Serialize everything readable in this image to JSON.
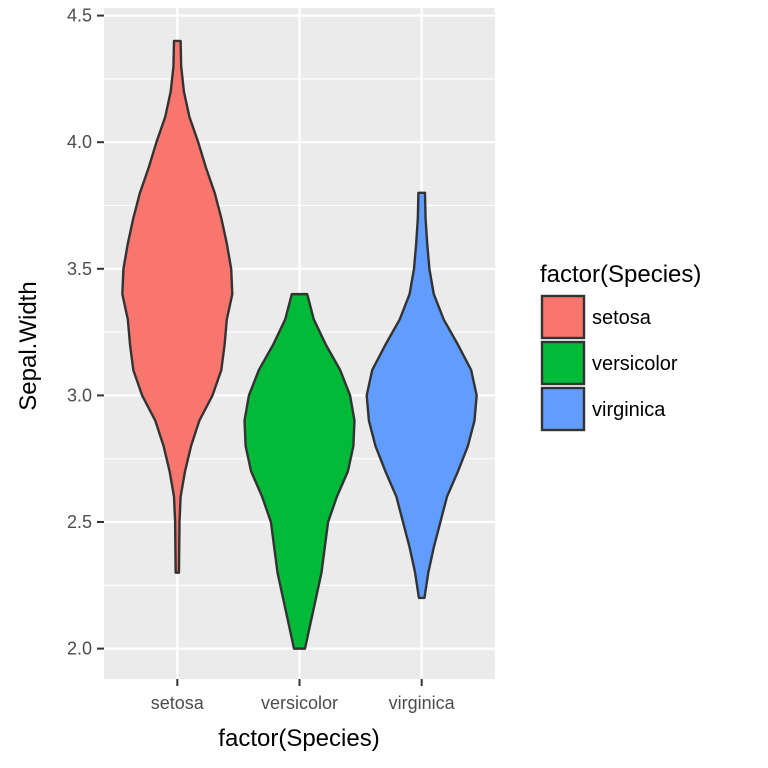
{
  "chart_data": {
    "type": "violin",
    "title": "",
    "xlabel": "factor(Species)",
    "ylabel": "Sepal.Width",
    "categories": [
      "setosa",
      "versicolor",
      "virginica"
    ],
    "ylim": [
      1.88,
      4.53
    ],
    "yticks": [
      2.0,
      2.5,
      3.0,
      3.5,
      4.0,
      4.5
    ],
    "ytick_labels": [
      "2.0",
      "2.5",
      "3.0",
      "3.5",
      "4.0",
      "4.5"
    ],
    "grid": true,
    "legend": {
      "title": "factor(Species)",
      "position": "right",
      "entries": [
        "setosa",
        "versicolor",
        "virginica"
      ]
    },
    "series": [
      {
        "category": "setosa",
        "color": "#F8766D",
        "range": [
          2.3,
          4.4
        ],
        "density_profile": [
          [
            2.3,
            0.03
          ],
          [
            2.5,
            0.04
          ],
          [
            2.6,
            0.06
          ],
          [
            2.7,
            0.14
          ],
          [
            2.8,
            0.25
          ],
          [
            2.9,
            0.4
          ],
          [
            3.0,
            0.64
          ],
          [
            3.1,
            0.8
          ],
          [
            3.2,
            0.86
          ],
          [
            3.3,
            0.9
          ],
          [
            3.4,
            1.0
          ],
          [
            3.5,
            0.98
          ],
          [
            3.6,
            0.9
          ],
          [
            3.7,
            0.8
          ],
          [
            3.8,
            0.68
          ],
          [
            3.9,
            0.52
          ],
          [
            4.0,
            0.38
          ],
          [
            4.1,
            0.22
          ],
          [
            4.2,
            0.12
          ],
          [
            4.3,
            0.07
          ],
          [
            4.4,
            0.06
          ]
        ]
      },
      {
        "category": "versicolor",
        "color": "#00BA38",
        "range": [
          2.0,
          3.4
        ],
        "density_profile": [
          [
            2.0,
            0.1
          ],
          [
            2.1,
            0.2
          ],
          [
            2.2,
            0.3
          ],
          [
            2.3,
            0.4
          ],
          [
            2.4,
            0.46
          ],
          [
            2.5,
            0.52
          ],
          [
            2.6,
            0.68
          ],
          [
            2.7,
            0.88
          ],
          [
            2.8,
            0.98
          ],
          [
            2.9,
            1.0
          ],
          [
            3.0,
            0.92
          ],
          [
            3.1,
            0.74
          ],
          [
            3.2,
            0.48
          ],
          [
            3.3,
            0.26
          ],
          [
            3.4,
            0.14
          ]
        ]
      },
      {
        "category": "virginica",
        "color": "#619CFF",
        "range": [
          2.2,
          3.8
        ],
        "density_profile": [
          [
            2.2,
            0.05
          ],
          [
            2.3,
            0.12
          ],
          [
            2.4,
            0.22
          ],
          [
            2.5,
            0.34
          ],
          [
            2.6,
            0.46
          ],
          [
            2.7,
            0.66
          ],
          [
            2.8,
            0.84
          ],
          [
            2.9,
            0.96
          ],
          [
            3.0,
            1.0
          ],
          [
            3.1,
            0.9
          ],
          [
            3.2,
            0.66
          ],
          [
            3.3,
            0.4
          ],
          [
            3.4,
            0.22
          ],
          [
            3.5,
            0.14
          ],
          [
            3.6,
            0.1
          ],
          [
            3.7,
            0.07
          ],
          [
            3.8,
            0.06
          ]
        ]
      }
    ]
  }
}
